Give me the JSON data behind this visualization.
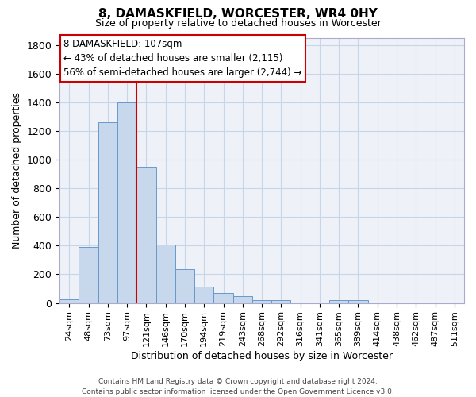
{
  "title": "8, DAMASKFIELD, WORCESTER, WR4 0HY",
  "subtitle": "Size of property relative to detached houses in Worcester",
  "xlabel": "Distribution of detached houses by size in Worcester",
  "ylabel": "Number of detached properties",
  "bar_labels": [
    "24sqm",
    "48sqm",
    "73sqm",
    "97sqm",
    "121sqm",
    "146sqm",
    "170sqm",
    "194sqm",
    "219sqm",
    "243sqm",
    "268sqm",
    "292sqm",
    "316sqm",
    "341sqm",
    "365sqm",
    "389sqm",
    "414sqm",
    "438sqm",
    "462sqm",
    "487sqm",
    "511sqm"
  ],
  "bar_values": [
    25,
    390,
    1260,
    1400,
    950,
    410,
    235,
    115,
    68,
    50,
    20,
    20,
    0,
    0,
    20,
    20,
    0,
    0,
    0,
    0,
    0
  ],
  "bar_color": "#c8d8ec",
  "bar_edge_color": "#6699cc",
  "property_line_color": "#cc0000",
  "property_line_x": 3.5,
  "ylim": [
    0,
    1850
  ],
  "yticks": [
    0,
    200,
    400,
    600,
    800,
    1000,
    1200,
    1400,
    1600,
    1800
  ],
  "annotation_title": "8 DAMASKFIELD: 107sqm",
  "annotation_line1": "← 43% of detached houses are smaller (2,115)",
  "annotation_line2": "56% of semi-detached houses are larger (2,744) →",
  "footer_line1": "Contains HM Land Registry data © Crown copyright and database right 2024.",
  "footer_line2": "Contains public sector information licensed under the Open Government Licence v3.0.",
  "background_color": "#ffffff",
  "plot_bg_color": "#eef2f8",
  "grid_color": "#c8d4e8"
}
